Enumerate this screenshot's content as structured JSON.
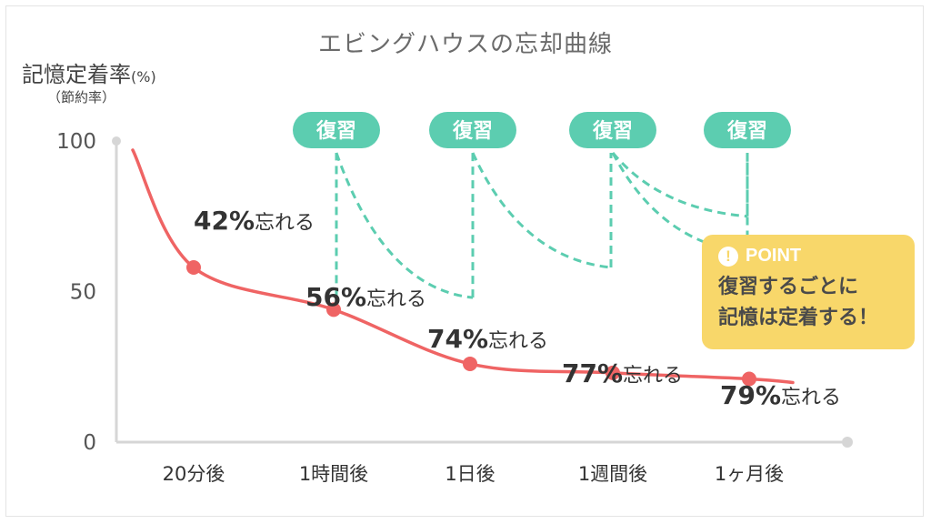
{
  "chart_data": {
    "type": "line",
    "title": "エビングハウスの忘却曲線",
    "ylabel": "記憶定着率",
    "ylabel_unit": "(%)",
    "ylabel_sub": "（節約率）",
    "yticks": [
      "100",
      "50",
      "0"
    ],
    "ylim": [
      0,
      100
    ],
    "categories": [
      "20分後",
      "1時間後",
      "1日後",
      "1週間後",
      "1ヶ月後"
    ],
    "series": [
      {
        "name": "",
        "color": "#ef6464",
        "values": [
          58,
          44,
          26,
          23,
          21
        ],
        "labels": [
          {
            "pct": "42%",
            "text": "忘れる"
          },
          {
            "pct": "56%",
            "text": "忘れる"
          },
          {
            "pct": "74%",
            "text": "忘れる"
          },
          {
            "pct": "77%",
            "text": "忘れる"
          },
          {
            "pct": "79%",
            "text": "忘れる"
          }
        ]
      }
    ],
    "review_label": "復習",
    "review_color": "#5ccdb0",
    "review_bottoms": [
      48,
      58,
      63,
      75
    ],
    "grid": false
  },
  "point": {
    "title": "POINT",
    "icon": "exclamation-icon",
    "line1": "復習するごとに",
    "line2": "記憶は定着する！"
  }
}
